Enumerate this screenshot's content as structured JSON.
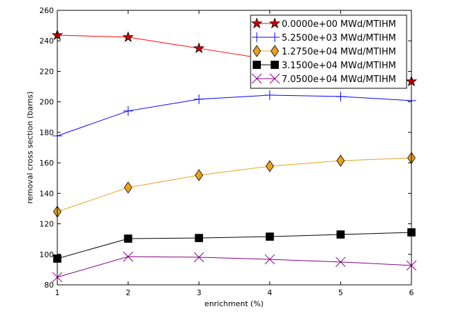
{
  "chart_data": {
    "type": "line",
    "xlabel": "enrichment (%)",
    "ylabel": "removal cross section (barns)",
    "xlim": [
      1,
      6
    ],
    "ylim": [
      80,
      260
    ],
    "xticks": [
      1,
      2,
      3,
      4,
      5,
      6
    ],
    "yticks": [
      80,
      100,
      120,
      140,
      160,
      180,
      200,
      220,
      240,
      260
    ],
    "legend_position": "top-right",
    "x": [
      1,
      2,
      3,
      4,
      5,
      6
    ],
    "series": [
      {
        "name": "0.0000e+00 MWd/MTIHM",
        "color": "#ff0000",
        "marker": "star",
        "fill": "#cc0000",
        "values": [
          243.7,
          242.4,
          235.1,
          227.7,
          220.5,
          213.4
        ]
      },
      {
        "name": "5.2500e+03 MWd/MTIHM",
        "color": "#0000ff",
        "marker": "plus",
        "fill": "#0000ff",
        "values": [
          177.7,
          194.0,
          201.7,
          204.4,
          203.5,
          200.8
        ]
      },
      {
        "name": "1.2750e+04 MWd/MTIHM",
        "color": "#e8a020",
        "marker": "diamond",
        "fill": "#e8a020",
        "values": [
          128.0,
          143.8,
          151.9,
          157.8,
          161.4,
          163.2
        ]
      },
      {
        "name": "3.1500e+04 MWd/MTIHM",
        "color": "#000000",
        "marker": "square",
        "fill": "#000000",
        "values": [
          97.2,
          110.3,
          110.7,
          111.6,
          113.0,
          114.4
        ]
      },
      {
        "name": "7.0500e+04 MWd/MTIHM",
        "color": "#800080",
        "marker": "x",
        "fill": "#800080",
        "values": [
          85.0,
          98.5,
          98.1,
          96.7,
          95.0,
          92.7
        ]
      }
    ]
  }
}
